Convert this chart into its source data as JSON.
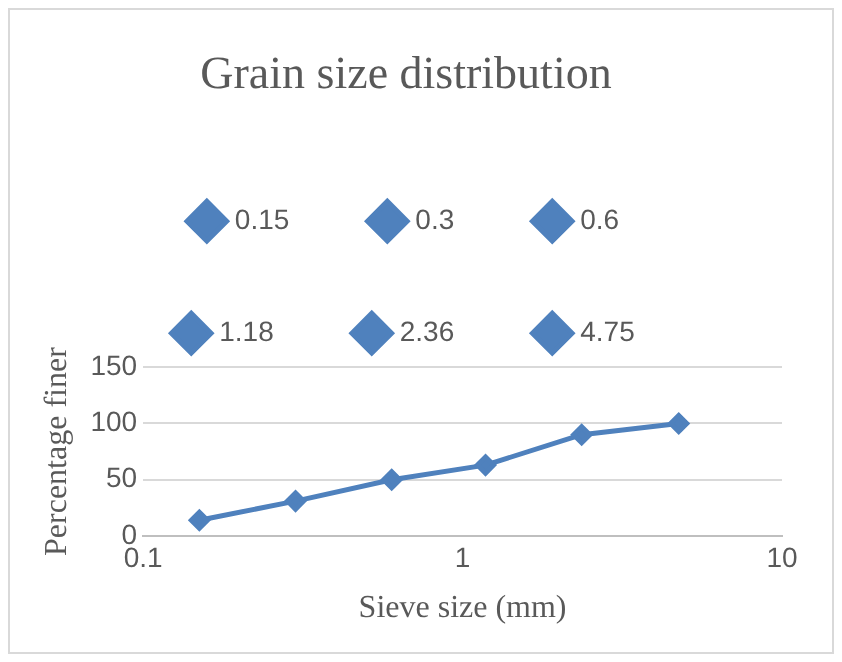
{
  "chart_data": {
    "type": "line",
    "title": "Grain size distribution",
    "xlabel": "Sieve size (mm)",
    "ylabel": "Percentage finer",
    "series": [
      {
        "name": "0.15",
        "color": "#4f81bd",
        "x": [
          0.15
        ],
        "values": [
          14
        ]
      },
      {
        "name": "0.3",
        "color": "#4f81bd",
        "x": [
          0.3
        ],
        "values": [
          31
        ]
      },
      {
        "name": "0.6",
        "color": "#4f81bd",
        "x": [
          0.6
        ],
        "values": [
          50
        ]
      },
      {
        "name": "1.18",
        "color": "#4f81bd",
        "x": [
          1.18
        ],
        "values": [
          63
        ]
      },
      {
        "name": "2.36",
        "color": "#4f81bd",
        "x": [
          2.36
        ],
        "values": [
          90
        ]
      },
      {
        "name": "4.75",
        "color": "#4f81bd",
        "x": [
          4.75
        ],
        "values": [
          100
        ]
      },
      {
        "color": "#4f81bd",
        "x": [
          0.15,
          0.3,
          0.6,
          1.18,
          2.36,
          4.75
        ],
        "values": [
          14,
          31,
          50,
          63,
          90,
          100
        ],
        "marker": "none"
      }
    ],
    "log": "x",
    "xlim": [
      0.1,
      10
    ],
    "xticks": [
      0.1,
      1,
      10
    ],
    "ylim": [
      0,
      150
    ],
    "yticks": [
      0,
      50,
      100,
      150
    ],
    "grid": "y",
    "legend": "top",
    "marker": "diamond",
    "line_style": "solid"
  }
}
